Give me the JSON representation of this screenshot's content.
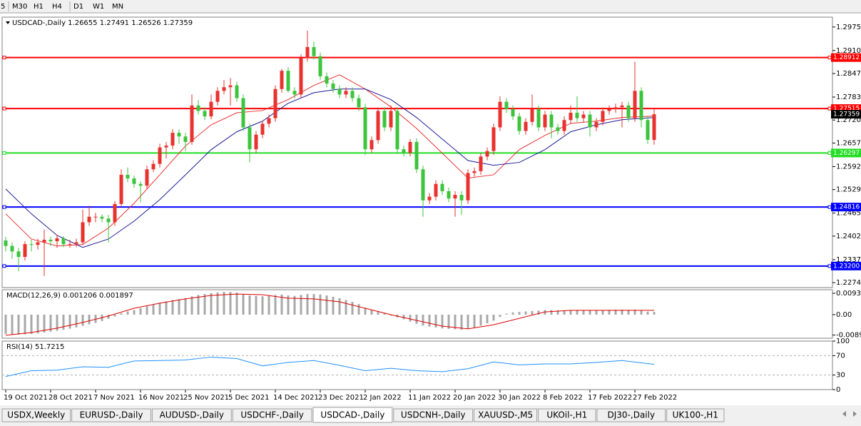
{
  "toolbar": {
    "timeframes": [
      "5",
      "M30",
      "H1",
      "H4",
      "D1",
      "W1",
      "MN"
    ]
  },
  "chart_data": [
    {
      "type": "candlestick",
      "title": "USDCAD-,Daily  1.26655 1.27491 1.26526 1.27359",
      "up_color": "#e8322e",
      "down_color": "#3cc43c",
      "categories": [
        "19 Oct 2021",
        null,
        null,
        null,
        null,
        null,
        null,
        "28 Oct 2021",
        null,
        null,
        null,
        null,
        null,
        null,
        "7 Nov 2021",
        null,
        null,
        null,
        null,
        null,
        null,
        "16 Nov 2021",
        null,
        null,
        null,
        null,
        null,
        null,
        "25 Nov 2021",
        null,
        null,
        null,
        null,
        null,
        null,
        "5 Dec 2021",
        null,
        null,
        null,
        null,
        null,
        null,
        "14 Dec 2021",
        null,
        null,
        null,
        null,
        null,
        null,
        "23 Dec 2021",
        null,
        null,
        null,
        null,
        null,
        null,
        "2 Jan 2022",
        null,
        null,
        null,
        null,
        null,
        null,
        "11 Jan 2022",
        null,
        null,
        null,
        null,
        null,
        null,
        "20 Jan 2022",
        null,
        null,
        null,
        null,
        null,
        null,
        "30 Jan 2022",
        null,
        null,
        null,
        null,
        null,
        null,
        "8 Feb 2022",
        null,
        null,
        null,
        null,
        null,
        null,
        "17 Feb 2022",
        null,
        null,
        null,
        null,
        null,
        null,
        "27 Feb 2022",
        null,
        null,
        null
      ],
      "ohlc": [
        [
          1.239,
          1.24,
          1.236,
          1.2375
        ],
        [
          1.2375,
          1.2385,
          1.234,
          1.236
        ],
        [
          1.236,
          1.237,
          1.2306,
          1.2345
        ],
        [
          1.2345,
          1.2388,
          1.2335,
          1.238
        ],
        [
          1.238,
          1.2392,
          1.236,
          1.2378
        ],
        [
          1.2378,
          1.2395,
          1.2365,
          1.2385
        ],
        [
          1.2385,
          1.242,
          1.2293,
          1.2392
        ],
        [
          1.2392,
          1.24,
          1.2375,
          1.2388
        ],
        [
          1.2388,
          1.2405,
          1.237,
          1.2396
        ],
        [
          1.2396,
          1.2402,
          1.2372,
          1.238
        ],
        [
          1.238,
          1.2392,
          1.237,
          1.238
        ],
        [
          1.238,
          1.2395,
          1.2372,
          1.2385
        ],
        [
          1.2385,
          1.2475,
          1.2378,
          1.244
        ],
        [
          1.244,
          1.2485,
          1.243,
          1.2455
        ],
        [
          1.2455,
          1.2466,
          1.244,
          1.2455
        ],
        [
          1.2455,
          1.2462,
          1.244,
          1.245
        ],
        [
          1.245,
          1.246,
          1.2385,
          1.244
        ],
        [
          1.244,
          1.2498,
          1.243,
          1.249
        ],
        [
          1.249,
          1.2585,
          1.2482,
          1.257
        ],
        [
          1.257,
          1.259,
          1.255,
          1.256
        ],
        [
          1.256,
          1.2568,
          1.2535,
          1.2545
        ],
        [
          1.2545,
          1.2552,
          1.2495,
          1.254
        ],
        [
          1.254,
          1.2595,
          1.2532,
          1.2585
        ],
        [
          1.2585,
          1.261,
          1.2578,
          1.26
        ],
        [
          1.26,
          1.2655,
          1.259,
          1.2645
        ],
        [
          1.2645,
          1.266,
          1.2615,
          1.265
        ],
        [
          1.265,
          1.2695,
          1.264,
          1.2685
        ],
        [
          1.2685,
          1.2694,
          1.2655,
          1.2675
        ],
        [
          1.2675,
          1.2685,
          1.2635,
          1.266
        ],
        [
          1.266,
          1.279,
          1.2652,
          1.276
        ],
        [
          1.276,
          1.2775,
          1.2735,
          1.2745
        ],
        [
          1.2745,
          1.2755,
          1.272,
          1.273
        ],
        [
          1.273,
          1.279,
          1.2722,
          1.277
        ],
        [
          1.277,
          1.281,
          1.276,
          1.28
        ],
        [
          1.28,
          1.283,
          1.279,
          1.281
        ],
        [
          1.281,
          1.2835,
          1.276,
          1.2815
        ],
        [
          1.2815,
          1.2825,
          1.277,
          1.278
        ],
        [
          1.278,
          1.279,
          1.269,
          1.27
        ],
        [
          1.27,
          1.271,
          1.2604,
          1.264
        ],
        [
          1.264,
          1.269,
          1.263,
          1.268
        ],
        [
          1.268,
          1.2718,
          1.267,
          1.271
        ],
        [
          1.271,
          1.2735,
          1.27,
          1.2725
        ],
        [
          1.2725,
          1.2815,
          1.2715,
          1.2805
        ],
        [
          1.2805,
          1.286,
          1.2795,
          1.2855
        ],
        [
          1.2855,
          1.2865,
          1.2795,
          1.28
        ],
        [
          1.28,
          1.281,
          1.278,
          1.279
        ],
        [
          1.279,
          1.29,
          1.278,
          1.289
        ],
        [
          1.289,
          1.2965,
          1.288,
          1.292
        ],
        [
          1.292,
          1.2935,
          1.2885,
          1.2895
        ],
        [
          1.2895,
          1.2905,
          1.283,
          1.284
        ],
        [
          1.284,
          1.285,
          1.281,
          1.282
        ],
        [
          1.282,
          1.283,
          1.2795,
          1.2805
        ],
        [
          1.2805,
          1.2815,
          1.278,
          1.279
        ],
        [
          1.279,
          1.281,
          1.278,
          1.28
        ],
        [
          1.28,
          1.281,
          1.277,
          1.278
        ],
        [
          1.278,
          1.279,
          1.2745,
          1.2755
        ],
        [
          1.2755,
          1.2765,
          1.2625,
          1.264
        ],
        [
          1.264,
          1.2675,
          1.263,
          1.2665
        ],
        [
          1.2665,
          1.2755,
          1.2655,
          1.2745
        ],
        [
          1.2745,
          1.2755,
          1.269,
          1.27
        ],
        [
          1.27,
          1.276,
          1.269,
          1.2745
        ],
        [
          1.2745,
          1.2755,
          1.263,
          1.264
        ],
        [
          1.264,
          1.265,
          1.262,
          1.263
        ],
        [
          1.263,
          1.2668,
          1.262,
          1.266
        ],
        [
          1.266,
          1.267,
          1.2575,
          1.2585
        ],
        [
          1.2585,
          1.2595,
          1.2455,
          1.25
        ],
        [
          1.25,
          1.252,
          1.249,
          1.251
        ],
        [
          1.251,
          1.2555,
          1.25,
          1.2545
        ],
        [
          1.2545,
          1.2555,
          1.2515,
          1.2525
        ],
        [
          1.2525,
          1.2535,
          1.2495,
          1.2505
        ],
        [
          1.2505,
          1.2525,
          1.2455,
          1.2515
        ],
        [
          1.2515,
          1.2525,
          1.246,
          1.25
        ],
        [
          1.25,
          1.2585,
          1.249,
          1.2575
        ],
        [
          1.2575,
          1.259,
          1.2565,
          1.258
        ],
        [
          1.258,
          1.263,
          1.257,
          1.262
        ],
        [
          1.262,
          1.2645,
          1.261,
          1.2635
        ],
        [
          1.2635,
          1.271,
          1.2625,
          1.27
        ],
        [
          1.27,
          1.2785,
          1.269,
          1.277
        ],
        [
          1.277,
          1.278,
          1.274,
          1.275
        ],
        [
          1.275,
          1.276,
          1.272,
          1.273
        ],
        [
          1.273,
          1.274,
          1.268,
          1.269
        ],
        [
          1.269,
          1.2725,
          1.268,
          1.2715
        ],
        [
          1.2715,
          1.279,
          1.2705,
          1.275
        ],
        [
          1.275,
          1.276,
          1.269,
          1.27
        ],
        [
          1.27,
          1.2745,
          1.269,
          1.2735
        ],
        [
          1.2735,
          1.2745,
          1.267,
          1.27
        ],
        [
          1.27,
          1.271,
          1.268,
          1.269
        ],
        [
          1.269,
          1.273,
          1.268,
          1.272
        ],
        [
          1.272,
          1.276,
          1.271,
          1.274
        ],
        [
          1.274,
          1.2785,
          1.2715,
          1.2725
        ],
        [
          1.2725,
          1.2745,
          1.2715,
          1.2735
        ],
        [
          1.2735,
          1.2745,
          1.2675,
          1.27
        ],
        [
          1.27,
          1.2725,
          1.269,
          1.2715
        ],
        [
          1.2715,
          1.2755,
          1.2705,
          1.2745
        ],
        [
          1.2745,
          1.276,
          1.2735,
          1.275
        ],
        [
          1.275,
          1.2765,
          1.274,
          1.2755
        ],
        [
          1.2755,
          1.277,
          1.27,
          1.276
        ],
        [
          1.276,
          1.277,
          1.2715,
          1.2725
        ],
        [
          1.2725,
          1.288,
          1.2715,
          1.28
        ],
        [
          1.28,
          1.281,
          1.27,
          1.272
        ],
        [
          1.272,
          1.273,
          1.2655,
          1.2666
        ],
        [
          1.26655,
          1.27491,
          1.26526,
          1.27359
        ]
      ],
      "series": [
        {
          "color": "#e8312f",
          "x": [
            0,
            4,
            8,
            12,
            16,
            20,
            24,
            28,
            32,
            36,
            40,
            44,
            48,
            52,
            56,
            60,
            64,
            68,
            72,
            76,
            80,
            84,
            88,
            92,
            96,
            101
          ],
          "values": [
            1.2463,
            1.2394,
            1.2375,
            1.2379,
            1.2424,
            1.2492,
            1.257,
            1.2649,
            1.2707,
            1.274,
            1.2746,
            1.2776,
            1.2815,
            1.2844,
            1.2805,
            1.2756,
            1.2697,
            1.2629,
            1.2561,
            1.257,
            1.2639,
            1.2678,
            1.2711,
            1.2717,
            1.2727,
            1.2731
          ]
        },
        {
          "color": "#1a1a9a",
          "x": [
            0,
            4,
            8,
            12,
            16,
            20,
            24,
            28,
            32,
            36,
            40,
            44,
            48,
            52,
            56,
            60,
            64,
            68,
            72,
            76,
            80,
            84,
            88,
            92,
            96,
            101
          ],
          "values": [
            1.2531,
            1.2463,
            1.2404,
            1.2371,
            1.2394,
            1.2443,
            1.2502,
            1.257,
            1.2639,
            1.2688,
            1.2717,
            1.2766,
            1.2795,
            1.2805,
            1.2805,
            1.2776,
            1.2727,
            1.2668,
            1.2609,
            1.2596,
            1.2604,
            1.2639,
            1.2688,
            1.2707,
            1.2721,
            1.2727
          ]
        }
      ],
      "lines": [
        {
          "value": 1.28912,
          "color": "#ff0000"
        },
        {
          "value": 1.27515,
          "color": "#ff0000"
        },
        {
          "value": 1.26297,
          "color": "#22dd22"
        },
        {
          "value": 1.24816,
          "color": "#0000ff"
        },
        {
          "value": 1.232,
          "label": "1.23200",
          "color": "#0000ff"
        }
      ],
      "last_price": 1.27359,
      "ylim": [
        1.2261,
        1.3002
      ],
      "yticks": [
        1.29105,
        1.28475,
        {
          "value": 1.2783,
          "label": "1.27830"
        },
        {
          "value": 1.272,
          "label": "1.27200"
        },
        {
          "value": 1.2657,
          "label": "1.26570"
        },
        1.25925,
        1.25295,
        {
          "value": 1.2465,
          "label": "1.24650"
        },
        {
          "value": 1.2402,
          "label": "1.24020"
        },
        1.23375,
        1.22745,
        {
          "value": 1.2975,
          "label": "1.29750"
        }
      ]
    },
    {
      "type": "bar",
      "title": "MACD(12,26,9) 0.001206 0.001897",
      "color": "#a8a8a8",
      "values": [
        -0.0085,
        -0.0086,
        -0.0087,
        -0.0086,
        -0.0084,
        -0.0082,
        -0.0078,
        -0.0074,
        -0.007,
        -0.0066,
        -0.0061,
        -0.0056,
        -0.0049,
        -0.0042,
        -0.0036,
        -0.0028,
        -0.0018,
        -0.0008,
        0.0006,
        0.0014,
        0.002,
        0.0028,
        0.0036,
        0.0044,
        0.0052,
        0.0058,
        0.0064,
        0.0068,
        0.0072,
        0.008,
        0.0086,
        0.009,
        0.0094,
        0.0097,
        0.0099,
        0.0099,
        0.0096,
        0.009,
        0.0084,
        0.0082,
        0.008,
        0.0082,
        0.0086,
        0.0088,
        0.0084,
        0.0082,
        0.0086,
        0.009,
        0.009,
        0.0088,
        0.0084,
        0.0078,
        0.0072,
        0.0064,
        0.0056,
        0.0046,
        0.003,
        0.002,
        0.0014,
        0.0006,
        -0.0004,
        -0.0012,
        -0.002,
        -0.003,
        -0.004,
        -0.0048,
        -0.0052,
        -0.0056,
        -0.006,
        -0.0062,
        -0.0064,
        -0.0066,
        -0.0062,
        -0.0056,
        -0.0048,
        -0.0038,
        -0.0026,
        -0.001,
        0.0004,
        0.001,
        0.0012,
        0.0014,
        0.0016,
        0.0018,
        0.002,
        0.002,
        0.0019,
        0.0018,
        0.0019,
        0.002,
        0.002,
        0.0019,
        0.0019,
        0.002,
        0.0021,
        0.0022,
        0.0022,
        0.0021,
        0.0022,
        0.0018,
        0.0013,
        0.0012
      ],
      "series": [
        {
          "color": "#e00000",
          "x": [
            0,
            4,
            8,
            12,
            16,
            20,
            24,
            28,
            32,
            36,
            40,
            44,
            48,
            52,
            56,
            60,
            64,
            68,
            72,
            76,
            80,
            84,
            88,
            92,
            96,
            101
          ],
          "values": [
            -0.009,
            -0.0078,
            -0.0059,
            -0.0034,
            -0.0006,
            0.0028,
            0.005,
            0.0069,
            0.0084,
            0.009,
            0.0087,
            0.0072,
            0.0069,
            0.0056,
            0.0028,
            0,
            -0.0025,
            -0.005,
            -0.0062,
            -0.0044,
            -0.0016,
            0.0012,
            0.0019,
            0.0019,
            0.0019,
            0.0019
          ]
        }
      ],
      "ylim": [
        -0.0103,
        0.0109
      ],
      "yticks": [
        0.009345,
        {
          "value": 0,
          "label": "0.00"
        },
        {
          "value": -0.0089,
          "label": "-0.00890"
        }
      ]
    },
    {
      "type": "line",
      "title": "RSI(14) 51.7215",
      "series": [
        {
          "color": "#1e90ff",
          "x": [
            0,
            4,
            8,
            12,
            16,
            20,
            24,
            28,
            32,
            36,
            40,
            44,
            48,
            52,
            56,
            60,
            64,
            68,
            72,
            76,
            80,
            84,
            88,
            92,
            96,
            101
          ],
          "values": [
            27,
            39,
            40,
            47,
            46,
            59,
            60,
            61,
            67,
            64,
            49,
            56,
            60,
            50,
            39,
            44,
            39,
            37,
            43,
            57,
            51,
            53,
            53,
            56,
            60,
            52
          ]
        }
      ],
      "levels": [
        30,
        70
      ],
      "ylim": [
        0,
        100
      ],
      "yticks": [
        100,
        70,
        30,
        0
      ]
    }
  ],
  "tabs": {
    "items": [
      "USDX,Weekly",
      "EURUSD-,Daily",
      "AUDUSD-,Daily",
      "USDCHF-,Daily",
      "USDCAD-,Daily",
      "USDCNH-,Daily",
      "XAUUSD-,M5",
      "UKOil-,H1",
      "DJ30-,Daily",
      "UK100-,H1"
    ],
    "active": 4
  }
}
